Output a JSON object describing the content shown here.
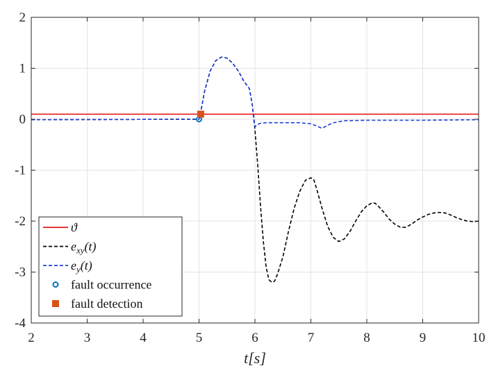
{
  "chart_data": {
    "type": "line",
    "xlabel": "t[s]",
    "ylabel": "",
    "xlim": [
      2,
      10
    ],
    "ylim": [
      -4,
      2
    ],
    "xticks": [
      2,
      3,
      4,
      5,
      6,
      7,
      8,
      9,
      10
    ],
    "yticks": [
      2,
      1,
      0,
      -1,
      -2,
      -3,
      -4
    ],
    "grid": true,
    "legend_position": "bottom-left",
    "series": [
      {
        "name": "ϑ",
        "color": "#e41a1c",
        "style": "solid",
        "points": [
          [
            2,
            0.1
          ],
          [
            10,
            0.1
          ]
        ]
      },
      {
        "name": "e_xy(t)",
        "color": "#000000",
        "style": "dashed",
        "points": [
          [
            2,
            -0.01
          ],
          [
            5.0,
            0.0
          ],
          [
            5.05,
            0.25
          ],
          [
            5.1,
            0.55
          ],
          [
            5.2,
            0.95
          ],
          [
            5.3,
            1.15
          ],
          [
            5.4,
            1.22
          ],
          [
            5.5,
            1.2
          ],
          [
            5.6,
            1.1
          ],
          [
            5.7,
            0.95
          ],
          [
            5.8,
            0.75
          ],
          [
            5.9,
            0.6
          ],
          [
            5.95,
            0.3
          ],
          [
            6.0,
            -0.2
          ],
          [
            6.05,
            -0.9
          ],
          [
            6.1,
            -1.7
          ],
          [
            6.15,
            -2.4
          ],
          [
            6.2,
            -2.9
          ],
          [
            6.25,
            -3.15
          ],
          [
            6.3,
            -3.2
          ],
          [
            6.35,
            -3.18
          ],
          [
            6.4,
            -3.05
          ],
          [
            6.5,
            -2.7
          ],
          [
            6.6,
            -2.2
          ],
          [
            6.7,
            -1.75
          ],
          [
            6.8,
            -1.42
          ],
          [
            6.9,
            -1.2
          ],
          [
            7.0,
            -1.15
          ],
          [
            7.05,
            -1.18
          ],
          [
            7.1,
            -1.35
          ],
          [
            7.2,
            -1.75
          ],
          [
            7.3,
            -2.1
          ],
          [
            7.4,
            -2.32
          ],
          [
            7.5,
            -2.4
          ],
          [
            7.6,
            -2.35
          ],
          [
            7.7,
            -2.2
          ],
          [
            7.8,
            -2.0
          ],
          [
            7.9,
            -1.82
          ],
          [
            8.0,
            -1.7
          ],
          [
            8.1,
            -1.64
          ],
          [
            8.15,
            -1.65
          ],
          [
            8.2,
            -1.7
          ],
          [
            8.3,
            -1.82
          ],
          [
            8.4,
            -1.96
          ],
          [
            8.5,
            -2.06
          ],
          [
            8.6,
            -2.12
          ],
          [
            8.7,
            -2.12
          ],
          [
            8.8,
            -2.06
          ],
          [
            8.9,
            -1.98
          ],
          [
            9.0,
            -1.92
          ],
          [
            9.1,
            -1.87
          ],
          [
            9.2,
            -1.84
          ],
          [
            9.3,
            -1.83
          ],
          [
            9.4,
            -1.84
          ],
          [
            9.5,
            -1.88
          ],
          [
            9.6,
            -1.93
          ],
          [
            9.7,
            -1.97
          ],
          [
            9.8,
            -2.0
          ],
          [
            9.9,
            -2.01
          ],
          [
            10.0,
            -2.0
          ]
        ]
      },
      {
        "name": "e_y(t)",
        "color": "#1f3fd6",
        "style": "dashed",
        "points": [
          [
            2,
            -0.01
          ],
          [
            5.0,
            0.0
          ],
          [
            5.05,
            0.25
          ],
          [
            5.1,
            0.55
          ],
          [
            5.2,
            0.95
          ],
          [
            5.3,
            1.15
          ],
          [
            5.4,
            1.22
          ],
          [
            5.5,
            1.2
          ],
          [
            5.6,
            1.1
          ],
          [
            5.7,
            0.95
          ],
          [
            5.8,
            0.75
          ],
          [
            5.9,
            0.6
          ],
          [
            5.95,
            0.3
          ],
          [
            6.0,
            -0.15
          ],
          [
            6.05,
            -0.1
          ],
          [
            6.1,
            -0.08
          ],
          [
            6.2,
            -0.07
          ],
          [
            6.5,
            -0.07
          ],
          [
            6.8,
            -0.07
          ],
          [
            7.0,
            -0.09
          ],
          [
            7.1,
            -0.13
          ],
          [
            7.2,
            -0.18
          ],
          [
            7.3,
            -0.12
          ],
          [
            7.4,
            -0.07
          ],
          [
            7.6,
            -0.03
          ],
          [
            8.0,
            -0.02
          ],
          [
            9.0,
            -0.02
          ],
          [
            10.0,
            -0.01
          ]
        ]
      }
    ],
    "markers": [
      {
        "name": "fault occurrence",
        "shape": "open-circle",
        "color": "#0072bd",
        "x": 5.0,
        "y": 0.0
      },
      {
        "name": "fault detection",
        "shape": "filled-square",
        "color": "#d95319",
        "x": 5.03,
        "y": 0.1
      }
    ]
  }
}
